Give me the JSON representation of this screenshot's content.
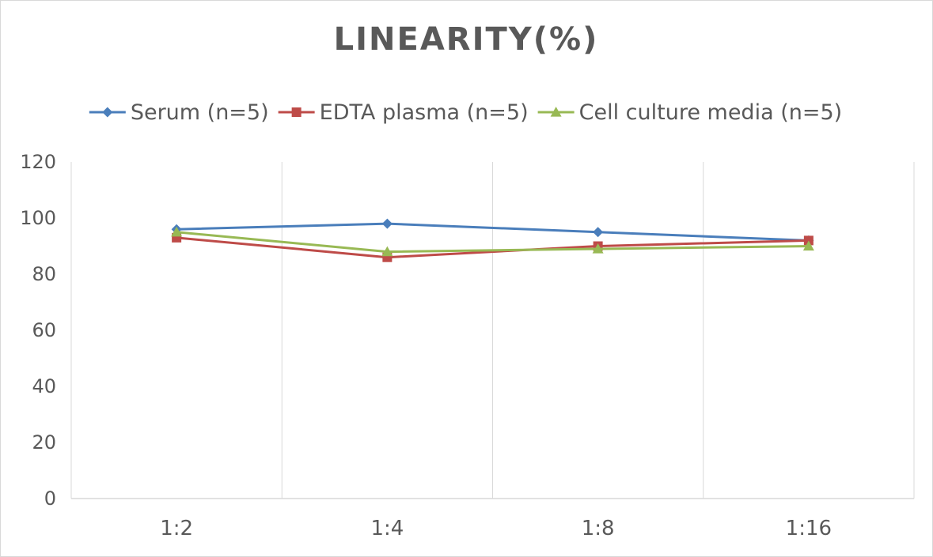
{
  "chart_data": {
    "type": "line",
    "title": "LINEARITY(%)",
    "xlabel": "",
    "ylabel": "",
    "categories": [
      "1:2",
      "1:4",
      "1:8",
      "1:16"
    ],
    "ylim": [
      0,
      120
    ],
    "yticks": [
      0,
      20,
      40,
      60,
      80,
      100,
      120
    ],
    "grid": "vertical",
    "legend_position": "top",
    "series": [
      {
        "name": "Serum (n=5)",
        "values": [
          96,
          98,
          95,
          92
        ],
        "color": "#4a7ebb",
        "marker": "diamond"
      },
      {
        "name": "EDTA plasma (n=5)",
        "values": [
          93,
          86,
          90,
          92
        ],
        "color": "#be4b48",
        "marker": "square"
      },
      {
        "name": "Cell culture media (n=5)",
        "values": [
          95,
          88,
          89,
          90
        ],
        "color": "#98b954",
        "marker": "triangle"
      }
    ]
  }
}
